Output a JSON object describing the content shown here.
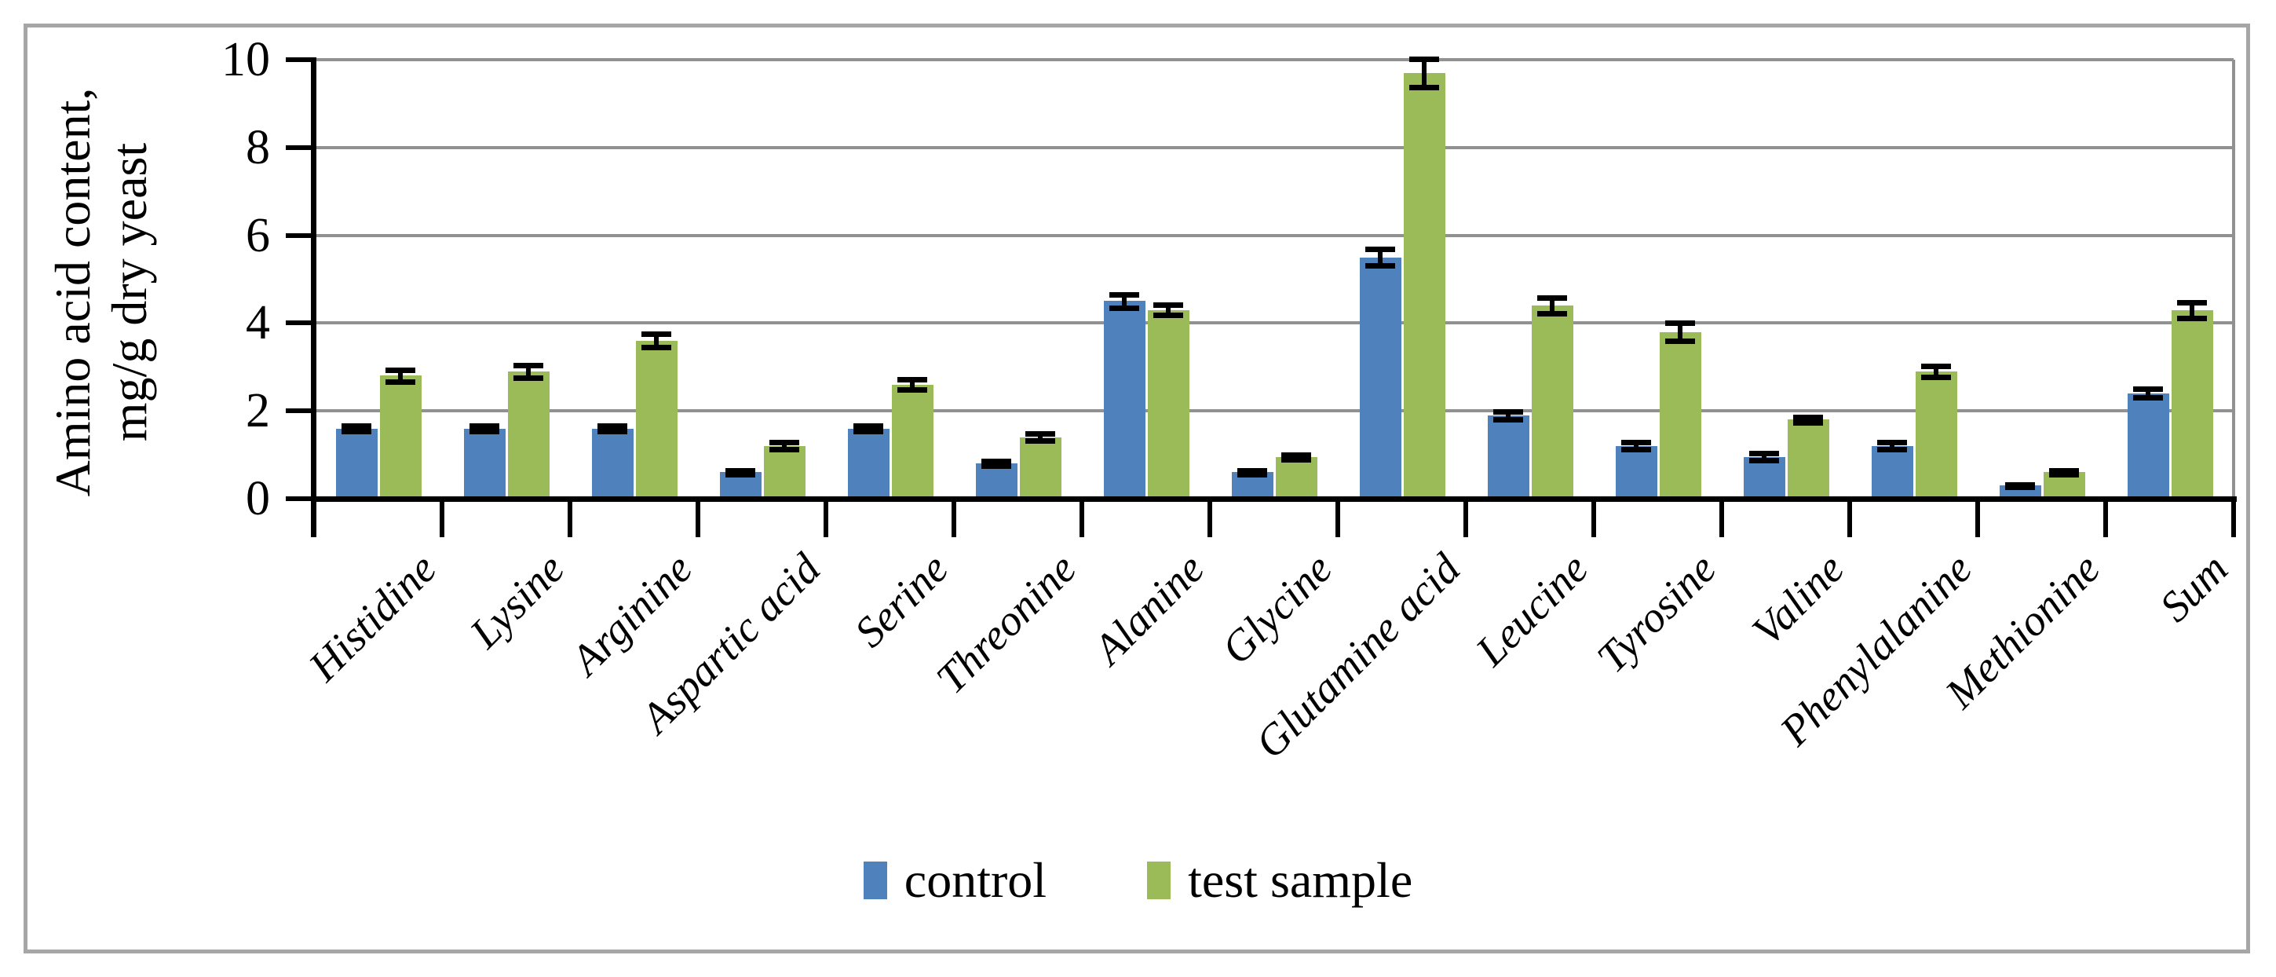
{
  "chart_data": {
    "type": "bar",
    "title": "",
    "ylabel": "Amino acid content, mg/g dry yeast",
    "ylabel_lines": [
      "Amino acid content,",
      "mg/g dry yeast"
    ],
    "xlabel": "",
    "ylim": [
      0,
      10
    ],
    "ytick_step": 2,
    "ytick_labels": [
      "0",
      "2",
      "4",
      "6",
      "8",
      "10"
    ],
    "grid": true,
    "legend_position": "bottom-center",
    "categories": [
      "Histidine",
      "Lysine",
      "Arginine",
      "Aspartic acid",
      "Serine",
      "Threonine",
      "Alanine",
      "Glycine",
      "Glutamine acid",
      "Leucine",
      "Tyrosine",
      "Valine",
      "Phenylalanine",
      "Methionine",
      "Sum"
    ],
    "series": [
      {
        "name": "control",
        "color": "#4F81BD",
        "values": [
          1.6,
          1.6,
          1.6,
          0.6,
          1.6,
          0.8,
          4.5,
          0.6,
          5.5,
          1.9,
          1.2,
          0.95,
          1.2,
          0.3,
          2.4
        ],
        "errors": [
          0.07,
          0.07,
          0.07,
          0.04,
          0.07,
          0.05,
          0.15,
          0.04,
          0.18,
          0.09,
          0.08,
          0.08,
          0.08,
          0.03,
          0.1
        ]
      },
      {
        "name": "test sample",
        "color": "#9BBB59",
        "values": [
          2.8,
          2.9,
          3.6,
          1.2,
          2.6,
          1.4,
          4.3,
          0.95,
          9.7,
          4.4,
          3.8,
          1.8,
          2.9,
          0.6,
          4.3
        ],
        "errors": [
          0.13,
          0.15,
          0.15,
          0.08,
          0.12,
          0.08,
          0.12,
          0.06,
          0.32,
          0.18,
          0.2,
          0.06,
          0.12,
          0.04,
          0.18
        ]
      }
    ]
  },
  "colors": {
    "gridline": "#919191",
    "axis": "#000000",
    "error_bar": "#000000",
    "frame_border": "#A6A6A6",
    "background": "#FFFFFF"
  }
}
